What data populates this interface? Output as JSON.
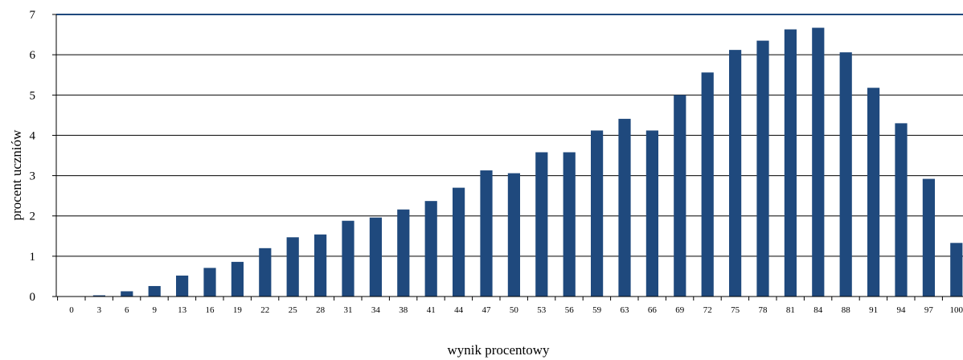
{
  "chart_data": {
    "type": "bar",
    "xlabel": "wynik procentowy",
    "ylabel": "procent uczniów",
    "ylim": [
      0,
      7
    ],
    "yticks": [
      0,
      1,
      2,
      3,
      4,
      5,
      6,
      7
    ],
    "grid": true,
    "bar_color": "#1F497D",
    "categories": [
      "0",
      "3",
      "6",
      "9",
      "13",
      "16",
      "19",
      "22",
      "25",
      "28",
      "31",
      "34",
      "38",
      "41",
      "44",
      "47",
      "50",
      "53",
      "56",
      "59",
      "63",
      "66",
      "69",
      "72",
      "75",
      "78",
      "81",
      "84",
      "88",
      "91",
      "94",
      "97",
      "100"
    ],
    "values": [
      0.0,
      0.03,
      0.13,
      0.26,
      0.52,
      0.71,
      0.86,
      1.2,
      1.47,
      1.54,
      1.88,
      1.96,
      2.16,
      2.37,
      2.7,
      3.13,
      3.06,
      3.58,
      3.58,
      4.12,
      4.41,
      4.12,
      5.0,
      5.56,
      6.12,
      6.35,
      6.63,
      6.67,
      6.06,
      5.18,
      4.3,
      2.92,
      1.33
    ]
  }
}
